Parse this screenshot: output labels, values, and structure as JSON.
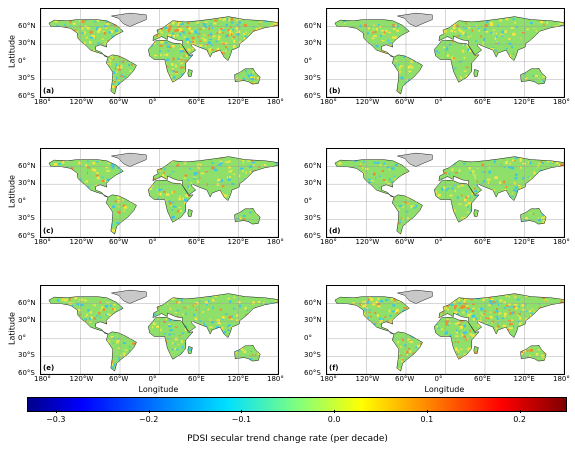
{
  "axes": {
    "ylabel": "Latitude",
    "xlabel": "Longitude",
    "lat_ticks": [
      "60°N",
      "30°N",
      "0°",
      "30°S",
      "60°S"
    ],
    "lon_ticks": [
      "180°",
      "120°W",
      "60°W",
      "0°",
      "60°E",
      "120°E",
      "180°"
    ]
  },
  "panels": [
    {
      "label": "(a)"
    },
    {
      "label": "(b)"
    },
    {
      "label": "(c)"
    },
    {
      "label": "(d)"
    },
    {
      "label": "(e)"
    },
    {
      "label": "(f)"
    }
  ],
  "colorbar": {
    "label": "PDSI secular trend change rate (per decade)",
    "ticks": [
      "−0.3",
      "−0.2",
      "−0.1",
      "0.0",
      "0.1",
      "0.2"
    ],
    "tick_values": [
      -0.3,
      -0.2,
      -0.1,
      0.0,
      0.1,
      0.2
    ],
    "range": [
      -0.33,
      0.25
    ],
    "colors": [
      "#00008a",
      "#0000ff",
      "#0080ff",
      "#00e0ff",
      "#7fff80",
      "#ffff00",
      "#ff8000",
      "#ff0000",
      "#7f0000"
    ]
  },
  "land_colors": {
    "base": "#8ee06a",
    "dry": "#f5e642",
    "drier": "#f08a2c",
    "wet": "#3fc6e6",
    "ice": "#c8c8c8"
  }
}
